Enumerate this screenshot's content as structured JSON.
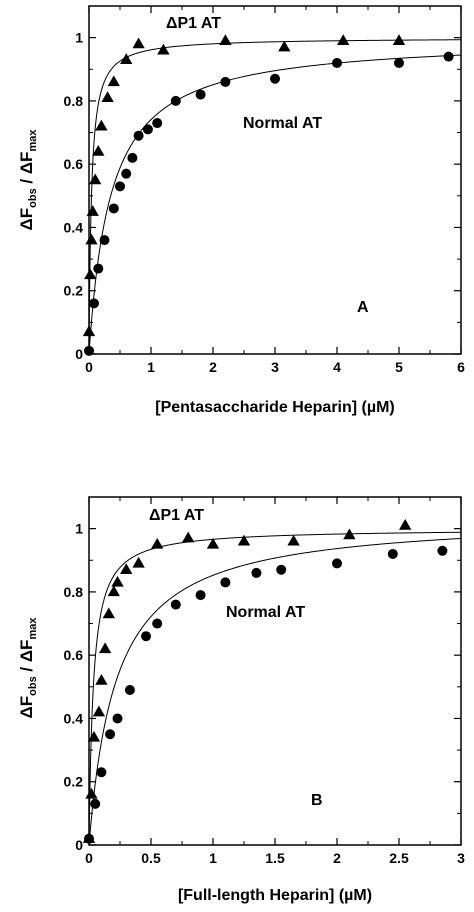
{
  "chart_data": [
    {
      "type": "scatter",
      "panel_label": "A",
      "xlabel": "[Pentasaccharide Heparin] (µM)",
      "ylabel": "ΔF_obs / ΔF_max",
      "ylabel_parts": {
        "delta1": "ΔF",
        "sub1": "obs",
        "slash": " / ",
        "delta2": "ΔF",
        "sub2": "max"
      },
      "xlim": [
        0,
        6
      ],
      "ylim": [
        0,
        1.1
      ],
      "x_ticks": [
        "0",
        "1",
        "2",
        "3",
        "4",
        "5",
        "6"
      ],
      "y_ticks": [
        "0",
        "0.2",
        "0.4",
        "0.6",
        "0.8",
        "1"
      ],
      "grid": false,
      "series": [
        {
          "name": "ΔP1 AT",
          "marker": "triangle",
          "points": [
            [
              0.0,
              0.07
            ],
            [
              0.02,
              0.25
            ],
            [
              0.04,
              0.36
            ],
            [
              0.06,
              0.45
            ],
            [
              0.1,
              0.55
            ],
            [
              0.15,
              0.64
            ],
            [
              0.2,
              0.72
            ],
            [
              0.3,
              0.81
            ],
            [
              0.4,
              0.86
            ],
            [
              0.6,
              0.93
            ],
            [
              0.8,
              0.98
            ],
            [
              1.2,
              0.96
            ],
            [
              2.2,
              0.99
            ],
            [
              3.15,
              0.97
            ],
            [
              4.1,
              0.99
            ],
            [
              5.0,
              0.99
            ]
          ],
          "fit": {
            "model": "hyperbola",
            "max": 1.0,
            "kd": 0.04
          }
        },
        {
          "name": "Normal AT",
          "marker": "circle",
          "points": [
            [
              0.0,
              0.01
            ],
            [
              0.08,
              0.16
            ],
            [
              0.15,
              0.27
            ],
            [
              0.25,
              0.36
            ],
            [
              0.4,
              0.46
            ],
            [
              0.5,
              0.53
            ],
            [
              0.6,
              0.57
            ],
            [
              0.7,
              0.62
            ],
            [
              0.8,
              0.69
            ],
            [
              0.95,
              0.71
            ],
            [
              1.1,
              0.73
            ],
            [
              1.4,
              0.8
            ],
            [
              1.8,
              0.82
            ],
            [
              2.2,
              0.86
            ],
            [
              3.0,
              0.87
            ],
            [
              4.0,
              0.92
            ],
            [
              5.0,
              0.92
            ],
            [
              5.8,
              0.94
            ]
          ],
          "fit": {
            "model": "hyperbola",
            "max": 1.0,
            "kd": 0.35
          }
        }
      ]
    },
    {
      "type": "scatter",
      "panel_label": "B",
      "xlabel": "[Full-length Heparin] (µM)",
      "ylabel": "ΔF_obs / ΔF_max",
      "ylabel_parts": {
        "delta1": "ΔF",
        "sub1": "obs",
        "slash": " / ",
        "delta2": "ΔF",
        "sub2": "max"
      },
      "xlim": [
        0,
        3
      ],
      "ylim": [
        0,
        1.1
      ],
      "x_ticks": [
        "0",
        "0.5",
        "1",
        "1.5",
        "2",
        "2.5",
        "3"
      ],
      "y_ticks": [
        "0",
        "0.2",
        "0.4",
        "0.6",
        "0.8",
        "1"
      ],
      "grid": false,
      "series": [
        {
          "name": "ΔP1 AT",
          "marker": "triangle",
          "points": [
            [
              0.0,
              0.02
            ],
            [
              0.02,
              0.16
            ],
            [
              0.04,
              0.34
            ],
            [
              0.08,
              0.42
            ],
            [
              0.1,
              0.52
            ],
            [
              0.13,
              0.62
            ],
            [
              0.16,
              0.73
            ],
            [
              0.2,
              0.8
            ],
            [
              0.23,
              0.83
            ],
            [
              0.3,
              0.87
            ],
            [
              0.4,
              0.89
            ],
            [
              0.55,
              0.95
            ],
            [
              0.8,
              0.97
            ],
            [
              1.0,
              0.95
            ],
            [
              1.25,
              0.96
            ],
            [
              1.65,
              0.96
            ],
            [
              2.1,
              0.98
            ],
            [
              2.55,
              1.01
            ]
          ],
          "fit": {
            "model": "hyperbola",
            "max": 1.0,
            "kd": 0.035
          }
        },
        {
          "name": "Normal AT",
          "marker": "circle",
          "points": [
            [
              0.0,
              0.02
            ],
            [
              0.05,
              0.13
            ],
            [
              0.1,
              0.23
            ],
            [
              0.17,
              0.35
            ],
            [
              0.23,
              0.4
            ],
            [
              0.33,
              0.49
            ],
            [
              0.46,
              0.66
            ],
            [
              0.55,
              0.7
            ],
            [
              0.7,
              0.76
            ],
            [
              0.9,
              0.79
            ],
            [
              1.1,
              0.83
            ],
            [
              1.35,
              0.86
            ],
            [
              1.55,
              0.87
            ],
            [
              2.0,
              0.89
            ],
            [
              2.45,
              0.92
            ],
            [
              2.85,
              0.93
            ]
          ],
          "fit": {
            "model": "hyperbola",
            "max": 1.04,
            "kd": 0.22
          }
        }
      ]
    }
  ]
}
